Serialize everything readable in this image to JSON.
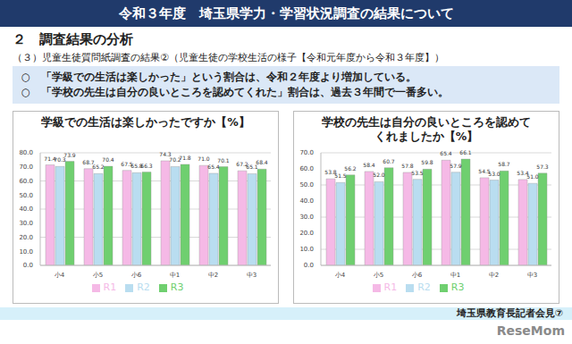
{
  "header": {
    "title": "令和３年度　埼玉県学力・学習状況調査の結果について"
  },
  "section": "２　調査結果の分析",
  "subtitle": "（３）児童生徒質問紙調査の結果②（児童生徒の学校生活の様子【令和元年度から令和３年度】）",
  "bullets": [
    "○　「学級での生活は楽しかった」という割合は、令和２年度より増加している。",
    "○　「学校の先生は自分の良いところを認めてくれた」割合は、過去３年間で一番多い。"
  ],
  "footer": "埼玉県教育長記者会見⑦",
  "watermark": "ReseMom",
  "chart_data": [
    {
      "type": "bar",
      "title": "学級での生活は楽しかったですか【%】",
      "categories": [
        "小4",
        "小5",
        "小6",
        "中1",
        "中2",
        "中3"
      ],
      "series": [
        {
          "name": "R1",
          "color": "#f5b9e6",
          "values": [
            71.4,
            68.7,
            67.5,
            74.3,
            71.0,
            67.2
          ],
          "value_labels": [
            "71.4",
            "68.7",
            "67.5",
            "74.3",
            "71.0",
            "67.2"
          ]
        },
        {
          "name": "R2",
          "color": "#b9ddf0",
          "values": [
            70.3,
            65.2,
            65.8,
            70.2,
            65.4,
            65.1
          ],
          "value_labels": [
            "70.3",
            "65.2",
            "65.8",
            "70.2",
            "65.4",
            "65.1"
          ]
        },
        {
          "name": "R3",
          "color": "#6fcf6f",
          "values": [
            73.9,
            70.4,
            66.3,
            71.8,
            70.1,
            68.4
          ],
          "value_labels": [
            "73.9",
            "70.4",
            "66.3",
            "71.8",
            "70.1",
            "68.4"
          ]
        }
      ],
      "ylim": [
        0,
        80
      ],
      "yticks": [
        {
          "value": 0,
          "label": "0.0"
        },
        {
          "value": 10,
          "label": "10.0"
        },
        {
          "value": 20,
          "label": "20.0"
        },
        {
          "value": 30,
          "label": "30.0"
        },
        {
          "value": 40,
          "label": "40.0"
        },
        {
          "value": 50,
          "label": "50.0"
        },
        {
          "value": 60,
          "label": "60.0"
        },
        {
          "value": 70,
          "label": "70.0"
        },
        {
          "value": 80,
          "label": "80.0"
        }
      ],
      "grid": true,
      "data_labels": true,
      "legend": "bottom"
    },
    {
      "type": "bar",
      "title": "学校の先生は自分の良いところを認めてくれましたか【%】",
      "categories": [
        "小4",
        "小5",
        "小6",
        "中1",
        "中2",
        "中3"
      ],
      "series": [
        {
          "name": "R1",
          "color": "#f5b9e6",
          "values": [
            53.8,
            58.4,
            57.8,
            65.4,
            54.5,
            53.4
          ],
          "value_labels": [
            "53.8",
            "58.4",
            "57.8",
            "65.4",
            "54.5",
            "53.4"
          ]
        },
        {
          "name": "R2",
          "color": "#b9ddf0",
          "values": [
            51.5,
            52.0,
            53.5,
            57.9,
            53.0,
            51.0
          ],
          "value_labels": [
            "51.5",
            "52.0",
            "53.5",
            "57.9",
            "53.0",
            "51.0"
          ]
        },
        {
          "name": "R3",
          "color": "#6fcf6f",
          "values": [
            56.2,
            60.7,
            59.8,
            66.1,
            58.7,
            57.3
          ],
          "value_labels": [
            "56.2",
            "60.7",
            "59.8",
            "66.1",
            "58.7",
            "57.3"
          ]
        }
      ],
      "ylim": [
        0,
        70
      ],
      "yticks": [
        {
          "value": 0,
          "label": "0.0"
        },
        {
          "value": 10,
          "label": "10.0"
        },
        {
          "value": 20,
          "label": "20.0"
        },
        {
          "value": 30,
          "label": "30.0"
        },
        {
          "value": 40,
          "label": "40.0"
        },
        {
          "value": 50,
          "label": "50.0"
        },
        {
          "value": 60,
          "label": "60.0"
        },
        {
          "value": 70,
          "label": "70.0"
        }
      ],
      "grid": true,
      "data_labels": true,
      "legend": "bottom"
    }
  ]
}
